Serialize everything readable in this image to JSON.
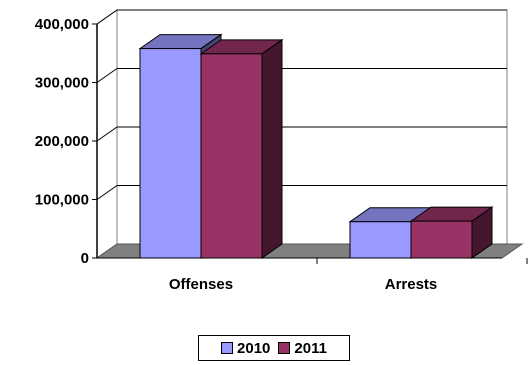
{
  "chart_data": {
    "type": "bar",
    "style": "3d-clustered",
    "categories": [
      "Offenses",
      "Arrests"
    ],
    "series": [
      {
        "name": "2010",
        "values": [
          358000,
          62000
        ],
        "color": "#9999ff"
      },
      {
        "name": "2011",
        "values": [
          349000,
          63000
        ],
        "color": "#993366"
      }
    ],
    "ylim": [
      0,
      400000
    ],
    "yticks": [
      0,
      100000,
      200000,
      300000,
      400000
    ],
    "ytick_labels": [
      "0",
      "100,000",
      "200,000",
      "300,000",
      "400,000"
    ],
    "grid": true,
    "legend": "bottom"
  }
}
